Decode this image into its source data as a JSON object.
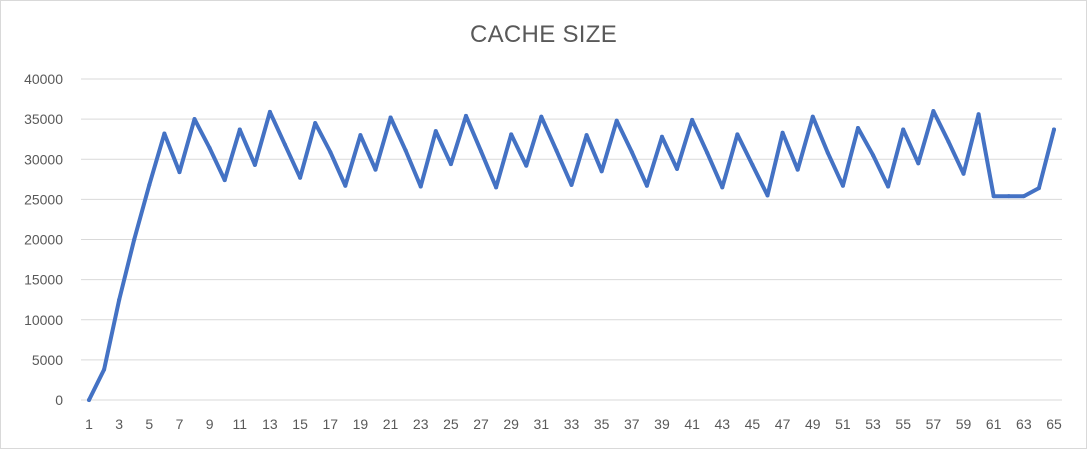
{
  "chart_data": {
    "type": "line",
    "title": "CACHE SIZE",
    "xlabel": "",
    "ylabel": "",
    "ylim": [
      0,
      40000
    ],
    "yticks": [
      0,
      5000,
      10000,
      15000,
      20000,
      25000,
      30000,
      35000,
      40000
    ],
    "xticks": [
      1,
      3,
      5,
      7,
      9,
      11,
      13,
      15,
      17,
      19,
      21,
      23,
      25,
      27,
      29,
      31,
      33,
      35,
      37,
      39,
      41,
      43,
      45,
      47,
      49,
      51,
      53,
      55,
      57,
      59,
      61,
      63,
      65
    ],
    "grid": true,
    "legend": "none",
    "color": "#4472c4",
    "x": [
      1,
      2,
      3,
      4,
      5,
      6,
      7,
      8,
      9,
      10,
      11,
      12,
      13,
      14,
      15,
      16,
      17,
      18,
      19,
      20,
      21,
      22,
      23,
      24,
      25,
      26,
      27,
      28,
      29,
      30,
      31,
      32,
      33,
      34,
      35,
      36,
      37,
      38,
      39,
      40,
      41,
      42,
      43,
      44,
      45,
      46,
      47,
      48,
      49,
      50,
      51,
      52,
      53,
      54,
      55,
      56,
      57,
      58,
      59,
      60,
      61,
      62,
      63,
      64,
      65
    ],
    "series": [
      {
        "values": [
          0,
          3800,
          12500,
          20000,
          26800,
          33200,
          28400,
          35000,
          31400,
          27400,
          33700,
          29300,
          35900,
          31800,
          27700,
          34500,
          30900,
          26700,
          33000,
          28700,
          35200,
          31100,
          26600,
          33500,
          29400,
          35400,
          31000,
          26500,
          33100,
          29200,
          35300,
          31100,
          26800,
          33000,
          28500,
          34800,
          30900,
          26700,
          32800,
          28800,
          34900,
          30800,
          26500,
          33100,
          29300,
          25500,
          33300,
          28700,
          35300,
          30800,
          26700,
          33900,
          30500,
          26600,
          33700,
          29500,
          36000,
          32200,
          28200,
          35600,
          25400,
          25400,
          25400,
          26400,
          33700
        ]
      }
    ]
  }
}
